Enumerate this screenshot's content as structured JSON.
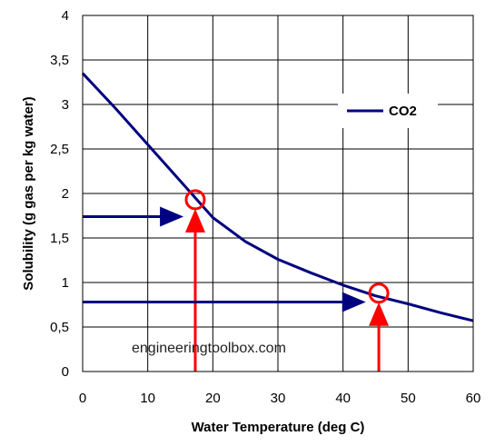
{
  "chart_data": {
    "type": "line",
    "xlabel": "Water Temperature (deg C)",
    "ylabel": "Solubility (g gas per kg water)",
    "xlim": [
      0,
      60
    ],
    "ylim": [
      0,
      4
    ],
    "x_ticks": [
      0,
      10,
      20,
      30,
      40,
      50,
      60
    ],
    "x_tick_labels": [
      "0",
      "10",
      "20",
      "30",
      "40",
      "50",
      "60"
    ],
    "y_ticks": [
      0,
      0.5,
      1,
      1.5,
      2,
      2.5,
      3,
      3.5,
      4
    ],
    "y_tick_labels": [
      "0",
      "0,5",
      "1",
      "1,5",
      "2",
      "2,5",
      "3",
      "3,5",
      "4"
    ],
    "grid": true,
    "legend_position": "top-right",
    "series": [
      {
        "name": "CO2",
        "color": "#000080",
        "x": [
          0,
          5,
          10,
          15,
          20,
          25,
          30,
          35,
          40,
          45,
          50,
          55,
          60
        ],
        "y": [
          3.35,
          2.96,
          2.55,
          2.14,
          1.73,
          1.46,
          1.26,
          1.11,
          0.97,
          0.85,
          0.76,
          0.66,
          0.57
        ]
      }
    ],
    "annotations": [
      {
        "type": "vertical-arrow",
        "color": "#ff0000",
        "x": 17.3,
        "y_from": 0,
        "y_to": 1.93
      },
      {
        "type": "horizontal-arrow",
        "color": "#000080",
        "y": 1.74,
        "x_from": 0,
        "x_to": 15.5
      },
      {
        "type": "circle",
        "color": "#ff0000",
        "x": 17.3,
        "y": 1.93
      },
      {
        "type": "vertical-arrow",
        "color": "#ff0000",
        "x": 45.5,
        "y_from": 0,
        "y_to": 0.88
      },
      {
        "type": "horizontal-arrow",
        "color": "#000080",
        "y": 0.78,
        "x_from": 0,
        "x_to": 43.5
      },
      {
        "type": "circle",
        "color": "#ff0000",
        "x": 45.5,
        "y": 0.88
      }
    ],
    "watermark": "engineeringtoolbox.com"
  }
}
